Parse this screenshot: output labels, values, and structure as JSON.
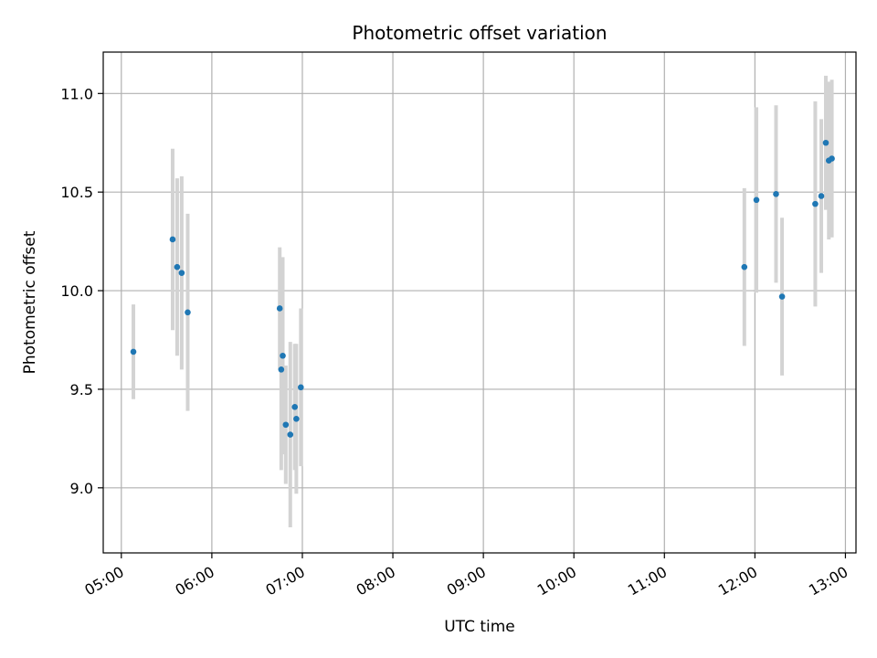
{
  "chart_data": {
    "type": "scatter",
    "title": "Photometric offset variation",
    "xlabel": "UTC time",
    "ylabel": "Photometric offset",
    "x_tick_labels": [
      "05:00",
      "06:00",
      "07:00",
      "08:00",
      "09:00",
      "10:00",
      "11:00",
      "12:00",
      "13:00"
    ],
    "y_tick_labels": [
      "9.0",
      "9.5",
      "10.0",
      "10.5",
      "11.0"
    ],
    "y_ticks": [
      9.0,
      9.5,
      10.0,
      10.5,
      11.0
    ],
    "xlim": [
      "04:48",
      "13:07"
    ],
    "ylim": [
      8.67,
      11.21
    ],
    "grid": true,
    "colors": {
      "point": "#1f77b4",
      "errorbar": "#d3d3d3",
      "grid": "#b0b0b0"
    },
    "points": [
      {
        "x": "05:08",
        "y": 9.69,
        "err": 0.24
      },
      {
        "x": "05:34",
        "y": 10.26,
        "err": 0.46
      },
      {
        "x": "05:37",
        "y": 10.12,
        "err": 0.45
      },
      {
        "x": "05:40",
        "y": 10.09,
        "err": 0.49
      },
      {
        "x": "05:44",
        "y": 9.89,
        "err": 0.5
      },
      {
        "x": "06:45",
        "y": 9.91,
        "err": 0.31
      },
      {
        "x": "06:46",
        "y": 9.6,
        "err": 0.51
      },
      {
        "x": "06:47",
        "y": 9.67,
        "err": 0.5
      },
      {
        "x": "06:49",
        "y": 9.32,
        "err": 0.3
      },
      {
        "x": "06:52",
        "y": 9.27,
        "err": 0.47
      },
      {
        "x": "06:55",
        "y": 9.41,
        "err": 0.32
      },
      {
        "x": "06:56",
        "y": 9.35,
        "err": 0.38
      },
      {
        "x": "06:59",
        "y": 9.51,
        "err": 0.4
      },
      {
        "x": "11:53",
        "y": 10.12,
        "err": 0.4
      },
      {
        "x": "12:01",
        "y": 10.46,
        "err": 0.47
      },
      {
        "x": "12:14",
        "y": 10.49,
        "err": 0.45
      },
      {
        "x": "12:18",
        "y": 9.97,
        "err": 0.4
      },
      {
        "x": "12:40",
        "y": 10.44,
        "err": 0.52
      },
      {
        "x": "12:44",
        "y": 10.48,
        "err": 0.39
      },
      {
        "x": "12:47",
        "y": 10.75,
        "err": 0.34
      },
      {
        "x": "12:49",
        "y": 10.66,
        "err": 0.4
      },
      {
        "x": "12:51",
        "y": 10.67,
        "err": 0.4
      }
    ]
  }
}
